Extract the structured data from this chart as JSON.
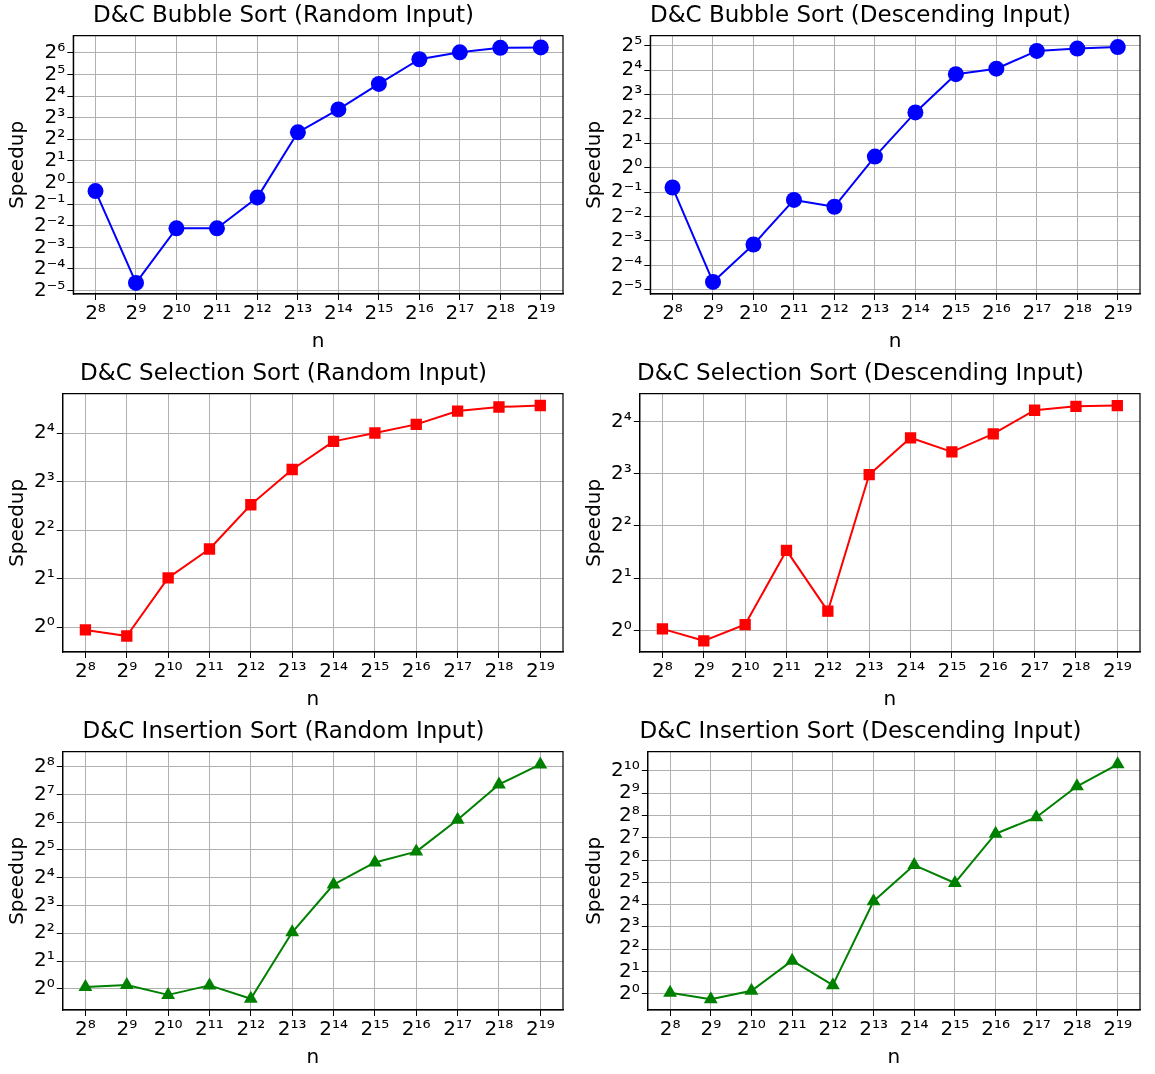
{
  "chart_data": [
    {
      "type": "line",
      "title": "D&C Bubble Sort (Random Input)",
      "xlabel": "n",
      "ylabel": "Speedup",
      "log": "xy",
      "grid": true,
      "legend": false,
      "marker": "circle",
      "line_style": "solid",
      "color": "#0000ff",
      "x": [
        256,
        512,
        1024,
        2048,
        4096,
        8192,
        16384,
        32768,
        65536,
        131072,
        262144,
        524288
      ],
      "values": [
        0.76,
        0.04,
        0.23,
        0.23,
        0.62,
        5.0,
        10.4,
        23.6,
        52,
        65,
        75,
        76
      ],
      "xlim": [
        175,
        767000
      ],
      "ylim": [
        0.028,
        111
      ],
      "xticks": [
        {
          "value": 256,
          "label": "2⁸"
        },
        {
          "value": 512,
          "label": "2⁹"
        },
        {
          "value": 1024,
          "label": "2¹⁰"
        },
        {
          "value": 2048,
          "label": "2¹¹"
        },
        {
          "value": 4096,
          "label": "2¹²"
        },
        {
          "value": 8192,
          "label": "2¹³"
        },
        {
          "value": 16384,
          "label": "2¹⁴"
        },
        {
          "value": 32768,
          "label": "2¹⁵"
        },
        {
          "value": 65536,
          "label": "2¹⁶"
        },
        {
          "value": 131072,
          "label": "2¹⁷"
        },
        {
          "value": 262144,
          "label": "2¹⁸"
        },
        {
          "value": 524288,
          "label": "2¹⁹"
        }
      ],
      "yticks": [
        {
          "value": 0.03125,
          "label": "2⁻⁵"
        },
        {
          "value": 0.0625,
          "label": "2⁻⁴"
        },
        {
          "value": 0.125,
          "label": "2⁻³"
        },
        {
          "value": 0.25,
          "label": "2⁻²"
        },
        {
          "value": 0.5,
          "label": "2⁻¹"
        },
        {
          "value": 1,
          "label": "2⁰"
        },
        {
          "value": 2,
          "label": "2¹"
        },
        {
          "value": 4,
          "label": "2²"
        },
        {
          "value": 8,
          "label": "2³"
        },
        {
          "value": 16,
          "label": "2⁴"
        },
        {
          "value": 32,
          "label": "2⁵"
        },
        {
          "value": 64,
          "label": "2⁶"
        }
      ]
    },
    {
      "type": "line",
      "title": "D&C Bubble Sort (Descending Input)",
      "xlabel": "n",
      "ylabel": "Speedup",
      "log": "xy",
      "grid": true,
      "legend": false,
      "marker": "circle",
      "line_style": "solid",
      "color": "#0000ff",
      "x": [
        256,
        512,
        1024,
        2048,
        4096,
        8192,
        16384,
        32768,
        65536,
        131072,
        262144,
        524288
      ],
      "values": [
        0.57,
        0.039,
        0.113,
        0.4,
        0.33,
        1.37,
        4.8,
        14.2,
        16.6,
        27.5,
        29.4,
        30.7
      ],
      "xlim": [
        175,
        767000
      ],
      "ylim": [
        0.0277,
        42.5
      ],
      "xticks": [
        {
          "value": 256,
          "label": "2⁸"
        },
        {
          "value": 512,
          "label": "2⁹"
        },
        {
          "value": 1024,
          "label": "2¹⁰"
        },
        {
          "value": 2048,
          "label": "2¹¹"
        },
        {
          "value": 4096,
          "label": "2¹²"
        },
        {
          "value": 8192,
          "label": "2¹³"
        },
        {
          "value": 16384,
          "label": "2¹⁴"
        },
        {
          "value": 32768,
          "label": "2¹⁵"
        },
        {
          "value": 65536,
          "label": "2¹⁶"
        },
        {
          "value": 131072,
          "label": "2¹⁷"
        },
        {
          "value": 262144,
          "label": "2¹⁸"
        },
        {
          "value": 524288,
          "label": "2¹⁹"
        }
      ],
      "yticks": [
        {
          "value": 0.03125,
          "label": "2⁻⁵"
        },
        {
          "value": 0.0625,
          "label": "2⁻⁴"
        },
        {
          "value": 0.125,
          "label": "2⁻³"
        },
        {
          "value": 0.25,
          "label": "2⁻²"
        },
        {
          "value": 0.5,
          "label": "2⁻¹"
        },
        {
          "value": 1,
          "label": "2⁰"
        },
        {
          "value": 2,
          "label": "2¹"
        },
        {
          "value": 4,
          "label": "2²"
        },
        {
          "value": 8,
          "label": "2³"
        },
        {
          "value": 16,
          "label": "2⁴"
        },
        {
          "value": 32,
          "label": "2⁵"
        }
      ]
    },
    {
      "type": "line",
      "title": "D&C Selection Sort (Random Input)",
      "xlabel": "n",
      "ylabel": "Speedup",
      "log": "xy",
      "grid": true,
      "legend": false,
      "marker": "square",
      "line_style": "solid",
      "color": "#ff0000",
      "x": [
        256,
        512,
        1024,
        2048,
        4096,
        8192,
        16384,
        32768,
        65536,
        131072,
        262144,
        524288
      ],
      "values": [
        0.96,
        0.88,
        2.02,
        3.05,
        5.74,
        9.5,
        14.2,
        16.0,
        18.1,
        21.9,
        23.2,
        23.7
      ],
      "xlim": [
        175,
        767000
      ],
      "ylim": [
        0.74,
        28.1
      ],
      "xticks": [
        {
          "value": 256,
          "label": "2⁸"
        },
        {
          "value": 512,
          "label": "2⁹"
        },
        {
          "value": 1024,
          "label": "2¹⁰"
        },
        {
          "value": 2048,
          "label": "2¹¹"
        },
        {
          "value": 4096,
          "label": "2¹²"
        },
        {
          "value": 8192,
          "label": "2¹³"
        },
        {
          "value": 16384,
          "label": "2¹⁴"
        },
        {
          "value": 32768,
          "label": "2¹⁵"
        },
        {
          "value": 65536,
          "label": "2¹⁶"
        },
        {
          "value": 131072,
          "label": "2¹⁷"
        },
        {
          "value": 262144,
          "label": "2¹⁸"
        },
        {
          "value": 524288,
          "label": "2¹⁹"
        }
      ],
      "yticks": [
        {
          "value": 1,
          "label": "2⁰"
        },
        {
          "value": 2,
          "label": "2¹"
        },
        {
          "value": 4,
          "label": "2²"
        },
        {
          "value": 8,
          "label": "2³"
        },
        {
          "value": 16,
          "label": "2⁴"
        }
      ]
    },
    {
      "type": "line",
      "title": "D&C Selection Sort (Descending Input)",
      "xlabel": "n",
      "ylabel": "Speedup",
      "log": "xy",
      "grid": true,
      "legend": false,
      "marker": "square",
      "line_style": "solid",
      "color": "#ff0000",
      "x": [
        256,
        512,
        1024,
        2048,
        4096,
        8192,
        16384,
        32768,
        65536,
        131072,
        262144,
        524288
      ],
      "values": [
        1.02,
        0.87,
        1.08,
        2.89,
        1.29,
        7.9,
        12.9,
        10.7,
        13.6,
        18.6,
        19.6,
        19.8
      ],
      "xlim": [
        175,
        767000
      ],
      "ylim": [
        0.75,
        23.2
      ],
      "xticks": [
        {
          "value": 256,
          "label": "2⁸"
        },
        {
          "value": 512,
          "label": "2⁹"
        },
        {
          "value": 1024,
          "label": "2¹⁰"
        },
        {
          "value": 2048,
          "label": "2¹¹"
        },
        {
          "value": 4096,
          "label": "2¹²"
        },
        {
          "value": 8192,
          "label": "2¹³"
        },
        {
          "value": 16384,
          "label": "2¹⁴"
        },
        {
          "value": 32768,
          "label": "2¹⁵"
        },
        {
          "value": 65536,
          "label": "2¹⁶"
        },
        {
          "value": 131072,
          "label": "2¹⁷"
        },
        {
          "value": 262144,
          "label": "2¹⁸"
        },
        {
          "value": 524288,
          "label": "2¹⁹"
        }
      ],
      "yticks": [
        {
          "value": 1,
          "label": "2⁰"
        },
        {
          "value": 2,
          "label": "2¹"
        },
        {
          "value": 4,
          "label": "2²"
        },
        {
          "value": 8,
          "label": "2³"
        },
        {
          "value": 16,
          "label": "2⁴"
        }
      ]
    },
    {
      "type": "line",
      "title": "D&C Insertion Sort (Random Input)",
      "xlabel": "n",
      "ylabel": "Speedup",
      "log": "xy",
      "grid": true,
      "legend": false,
      "marker": "triangle",
      "line_style": "solid",
      "color": "#008000",
      "x": [
        256,
        512,
        1024,
        2048,
        4096,
        8192,
        16384,
        32768,
        65536,
        131072,
        262144,
        524288
      ],
      "values": [
        1.05,
        1.1,
        0.86,
        1.09,
        0.78,
        4.1,
        13.5,
        23.4,
        30.7,
        68,
        164,
        270
      ],
      "xlim": [
        175,
        767000
      ],
      "ylim": [
        0.59,
        372
      ],
      "xticks": [
        {
          "value": 256,
          "label": "2⁸"
        },
        {
          "value": 512,
          "label": "2⁹"
        },
        {
          "value": 1024,
          "label": "2¹⁰"
        },
        {
          "value": 2048,
          "label": "2¹¹"
        },
        {
          "value": 4096,
          "label": "2¹²"
        },
        {
          "value": 8192,
          "label": "2¹³"
        },
        {
          "value": 16384,
          "label": "2¹⁴"
        },
        {
          "value": 32768,
          "label": "2¹⁵"
        },
        {
          "value": 65536,
          "label": "2¹⁶"
        },
        {
          "value": 131072,
          "label": "2¹⁷"
        },
        {
          "value": 262144,
          "label": "2¹⁸"
        },
        {
          "value": 524288,
          "label": "2¹⁹"
        }
      ],
      "yticks": [
        {
          "value": 1,
          "label": "2⁰"
        },
        {
          "value": 2,
          "label": "2¹"
        },
        {
          "value": 4,
          "label": "2²"
        },
        {
          "value": 8,
          "label": "2³"
        },
        {
          "value": 16,
          "label": "2⁴"
        },
        {
          "value": 32,
          "label": "2⁵"
        },
        {
          "value": 64,
          "label": "2⁶"
        },
        {
          "value": 128,
          "label": "2⁷"
        },
        {
          "value": 256,
          "label": "2⁸"
        }
      ]
    },
    {
      "type": "line",
      "title": "D&C Insertion Sort (Descending Input)",
      "xlabel": "n",
      "ylabel": "Speedup",
      "log": "xy",
      "grid": true,
      "legend": false,
      "marker": "triangle",
      "line_style": "solid",
      "color": "#008000",
      "x": [
        256,
        512,
        1024,
        2048,
        4096,
        8192,
        16384,
        32768,
        65536,
        131072,
        262144,
        524288
      ],
      "values": [
        1.03,
        0.84,
        1.09,
        2.79,
        1.3,
        17.7,
        54.6,
        31.3,
        145,
        242,
        635,
        1260
      ],
      "xlim": [
        175,
        767000
      ],
      "ylim": [
        0.6,
        1870
      ],
      "xticks": [
        {
          "value": 256,
          "label": "2⁸"
        },
        {
          "value": 512,
          "label": "2⁹"
        },
        {
          "value": 1024,
          "label": "2¹⁰"
        },
        {
          "value": 2048,
          "label": "2¹¹"
        },
        {
          "value": 4096,
          "label": "2¹²"
        },
        {
          "value": 8192,
          "label": "2¹³"
        },
        {
          "value": 16384,
          "label": "2¹⁴"
        },
        {
          "value": 32768,
          "label": "2¹⁵"
        },
        {
          "value": 65536,
          "label": "2¹⁶"
        },
        {
          "value": 131072,
          "label": "2¹⁷"
        },
        {
          "value": 262144,
          "label": "2¹⁸"
        },
        {
          "value": 524288,
          "label": "2¹⁹"
        }
      ],
      "yticks": [
        {
          "value": 1,
          "label": "2⁰"
        },
        {
          "value": 2,
          "label": "2¹"
        },
        {
          "value": 4,
          "label": "2²"
        },
        {
          "value": 8,
          "label": "2³"
        },
        {
          "value": 16,
          "label": "2⁴"
        },
        {
          "value": 32,
          "label": "2⁵"
        },
        {
          "value": 64,
          "label": "2⁶"
        },
        {
          "value": 128,
          "label": "2⁷"
        },
        {
          "value": 256,
          "label": "2⁸"
        },
        {
          "value": 512,
          "label": "2⁹"
        },
        {
          "value": 1024,
          "label": "2¹⁰"
        }
      ]
    }
  ]
}
